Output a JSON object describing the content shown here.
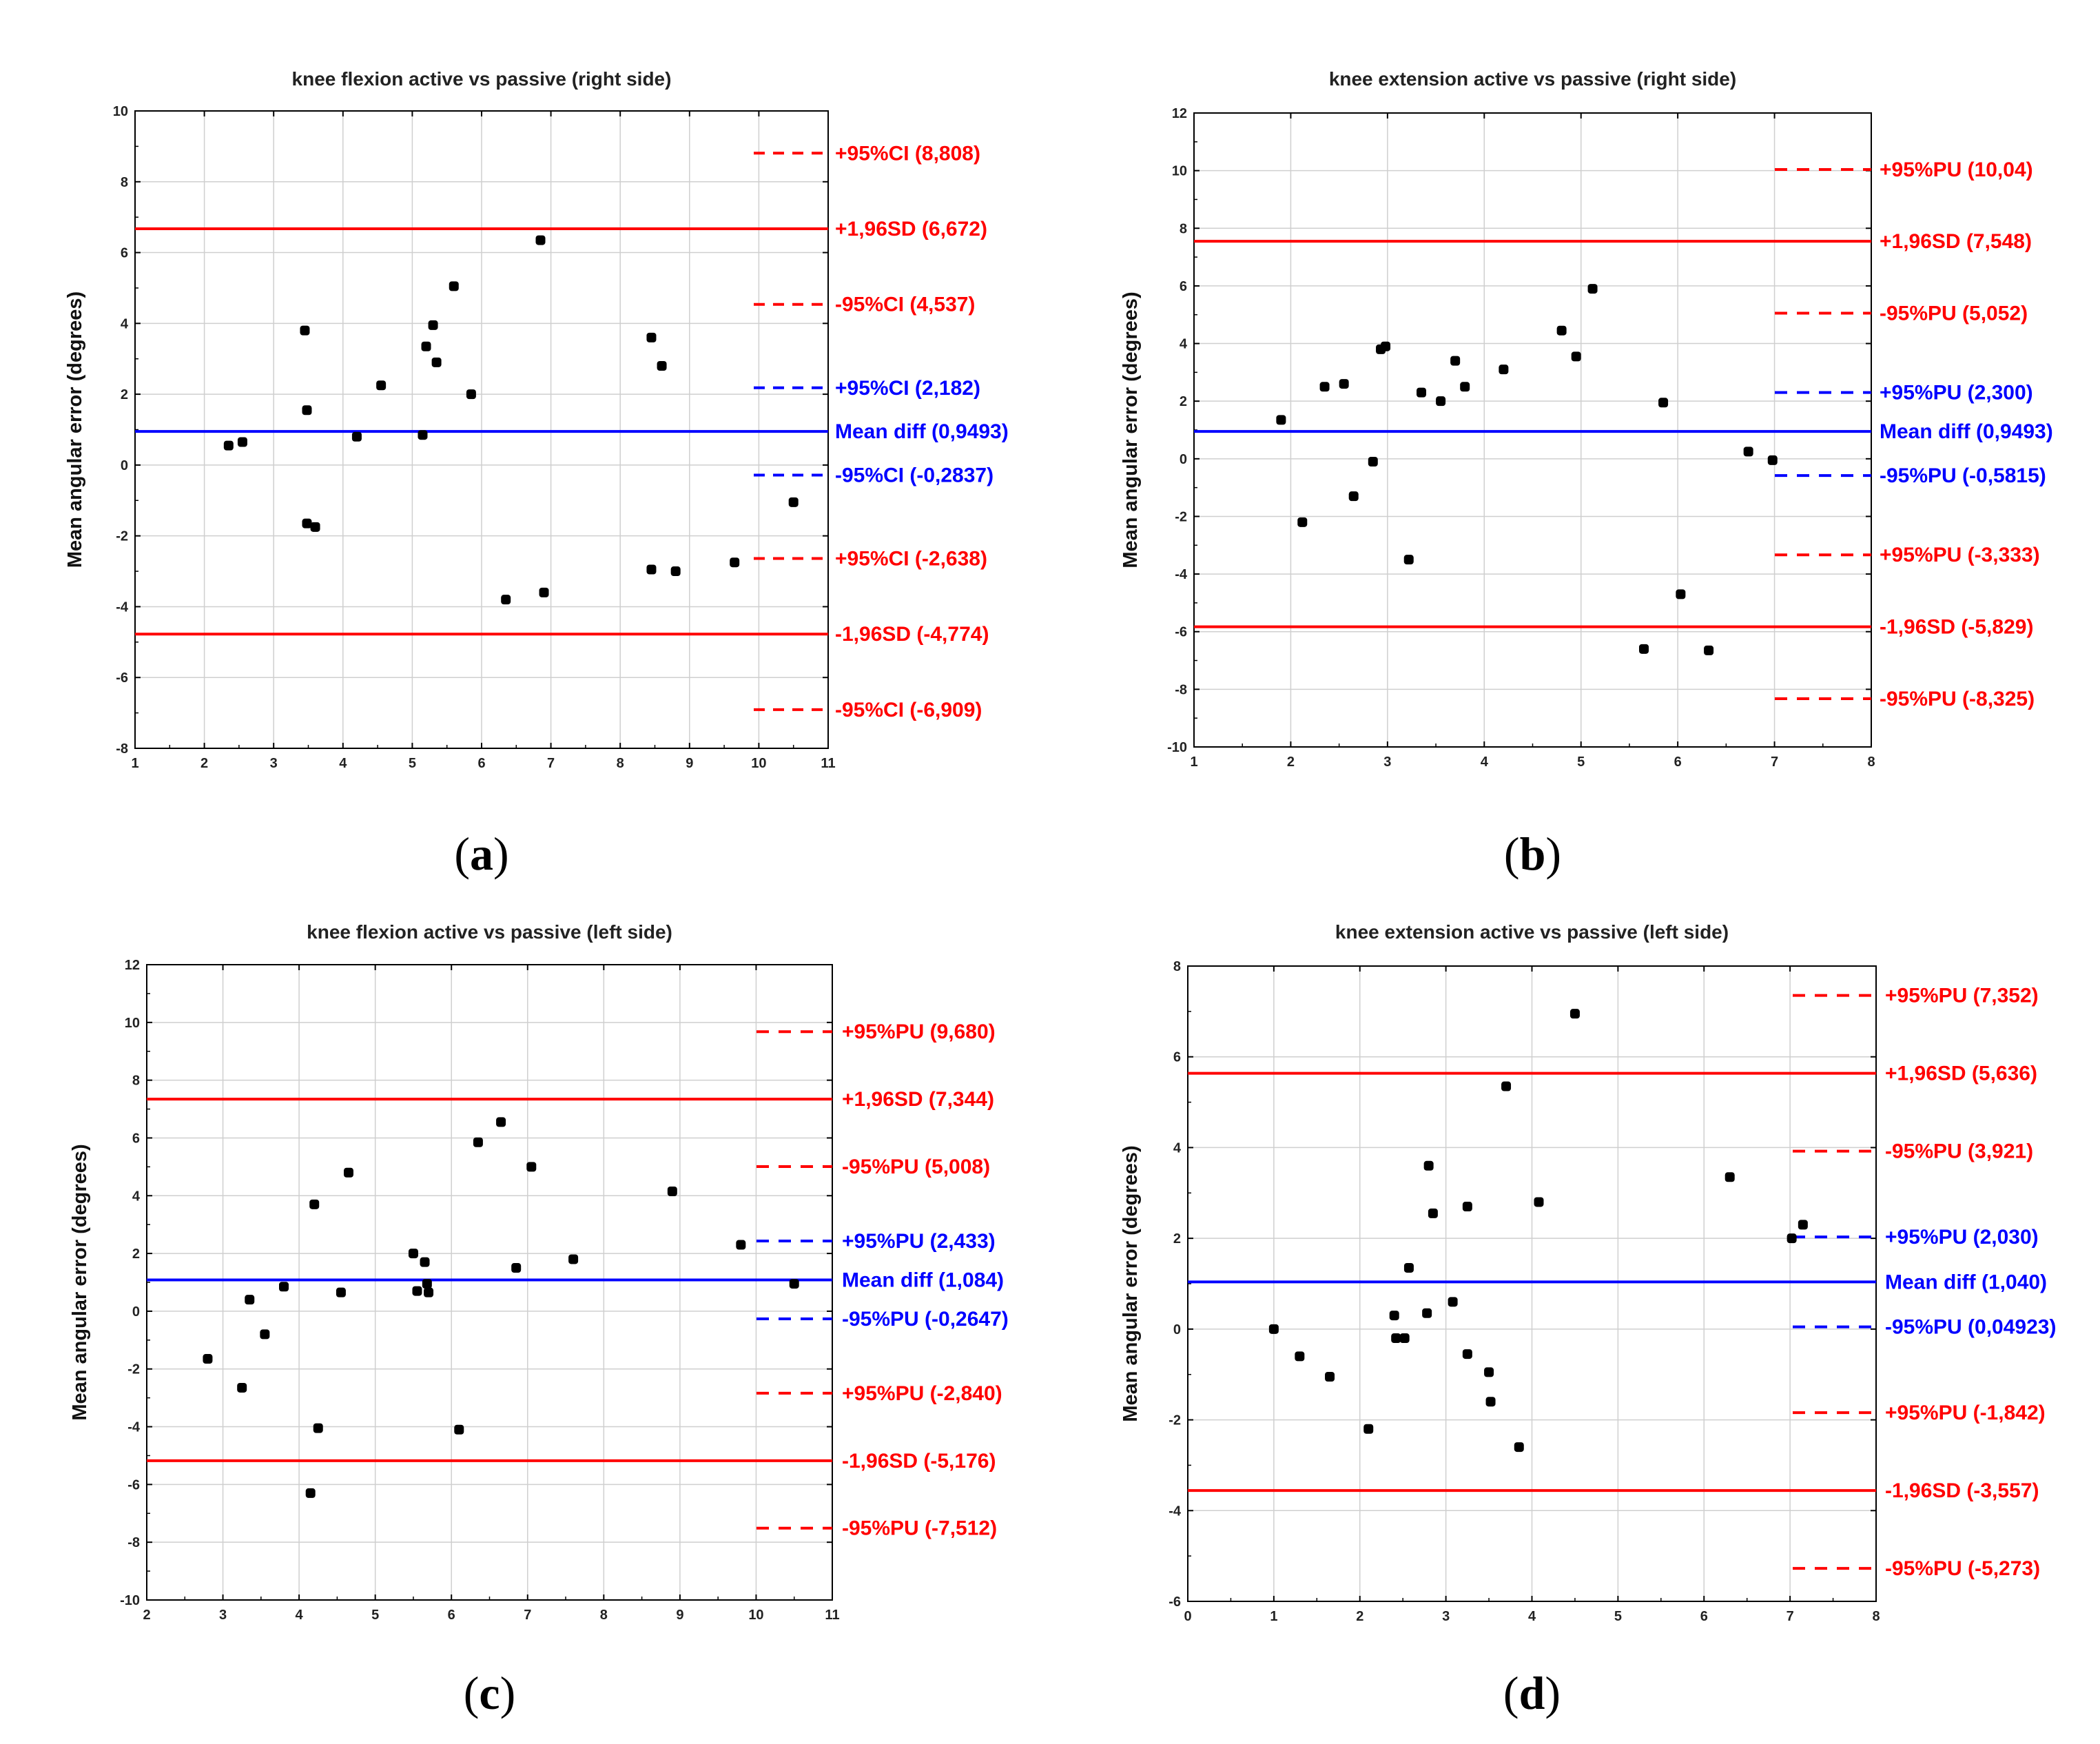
{
  "colors": {
    "red": "#ff0000",
    "blue": "#0000ff",
    "point": "#000000",
    "grid": "#cfcfcf",
    "axis": "#000000"
  },
  "chart_data": [
    {
      "type": "scatter",
      "title": "knee flexion active vs passive (right side)",
      "panel_label": "a",
      "xlabel": "",
      "ylabel": "Mean angular error (degrees)",
      "xlim": [
        1,
        11
      ],
      "ylim": [
        -8,
        10
      ],
      "xticks": [
        1,
        2,
        3,
        4,
        5,
        6,
        7,
        8,
        9,
        10,
        11
      ],
      "yticks": [
        -8,
        -6,
        -4,
        -2,
        0,
        2,
        4,
        6,
        8,
        10
      ],
      "points": [
        [
          2.35,
          0.55
        ],
        [
          2.55,
          0.65
        ],
        [
          3.45,
          3.8
        ],
        [
          3.48,
          1.55
        ],
        [
          3.48,
          -1.65
        ],
        [
          3.6,
          -1.75
        ],
        [
          4.2,
          0.8
        ],
        [
          4.55,
          2.25
        ],
        [
          5.15,
          0.85
        ],
        [
          5.2,
          3.35
        ],
        [
          5.3,
          3.95
        ],
        [
          5.35,
          2.9
        ],
        [
          5.6,
          5.05
        ],
        [
          5.85,
          2.0
        ],
        [
          6.35,
          -3.8
        ],
        [
          6.85,
          6.35
        ],
        [
          6.9,
          -3.6
        ],
        [
          8.45,
          -2.95
        ],
        [
          8.45,
          3.6
        ],
        [
          8.6,
          2.8
        ],
        [
          8.8,
          -3.0
        ],
        [
          9.65,
          -2.75
        ],
        [
          10.5,
          -1.05
        ]
      ],
      "lines": [
        {
          "label": "+95%CI (8,808)",
          "value": 8.808,
          "color": "red",
          "style": "dashed-short"
        },
        {
          "label": "+1,96SD (6,672)",
          "value": 6.672,
          "color": "red",
          "style": "solid"
        },
        {
          "label": "-95%CI (4,537)",
          "value": 4.537,
          "color": "red",
          "style": "dashed-short"
        },
        {
          "label": "+95%CI (2,182)",
          "value": 2.182,
          "color": "blue",
          "style": "dashed-short"
        },
        {
          "label": "Mean diff (0,9493)",
          "value": 0.9493,
          "color": "blue",
          "style": "solid"
        },
        {
          "label": "-95%CI (-0,2837)",
          "value": -0.2837,
          "color": "blue",
          "style": "dashed-short"
        },
        {
          "label": "+95%CI (-2,638)",
          "value": -2.638,
          "color": "red",
          "style": "dashed-short"
        },
        {
          "label": "-1,96SD (-4,774)",
          "value": -4.774,
          "color": "red",
          "style": "solid"
        },
        {
          "label": "-95%CI (-6,909)",
          "value": -6.909,
          "color": "red",
          "style": "dashed-short"
        }
      ]
    },
    {
      "type": "scatter",
      "title": "knee extension active vs passive (right side)",
      "panel_label": "b",
      "xlabel": "",
      "ylabel": "Mean angular error (degrees)",
      "xlim": [
        1,
        8
      ],
      "ylim": [
        -10,
        12
      ],
      "xticks": [
        1,
        2,
        3,
        4,
        5,
        6,
        7,
        8
      ],
      "yticks": [
        -10,
        -8,
        -6,
        -4,
        -2,
        0,
        2,
        4,
        6,
        8,
        10,
        12
      ],
      "points": [
        [
          1.9,
          1.35
        ],
        [
          2.12,
          -2.2
        ],
        [
          2.35,
          2.5
        ],
        [
          2.55,
          2.6
        ],
        [
          2.65,
          -1.3
        ],
        [
          2.85,
          -0.1
        ],
        [
          2.93,
          3.8
        ],
        [
          2.98,
          3.9
        ],
        [
          3.22,
          -3.5
        ],
        [
          3.35,
          2.3
        ],
        [
          3.55,
          2.0
        ],
        [
          3.7,
          3.4
        ],
        [
          3.8,
          2.5
        ],
        [
          4.2,
          3.1
        ],
        [
          4.8,
          4.45
        ],
        [
          4.95,
          3.55
        ],
        [
          5.12,
          5.9
        ],
        [
          5.65,
          -6.6
        ],
        [
          5.85,
          1.95
        ],
        [
          6.03,
          -4.7
        ],
        [
          6.32,
          -6.65
        ],
        [
          6.73,
          0.25
        ],
        [
          6.98,
          -0.05
        ]
      ],
      "lines": [
        {
          "label": "+95%PU (10,04)",
          "value": 10.04,
          "color": "red",
          "style": "dashed-long"
        },
        {
          "label": "+1,96SD (7,548)",
          "value": 7.548,
          "color": "red",
          "style": "solid"
        },
        {
          "label": "-95%PU (5,052)",
          "value": 5.052,
          "color": "red",
          "style": "dashed-long"
        },
        {
          "label": "+95%PU (2,300)",
          "value": 2.3,
          "color": "blue",
          "style": "dashed-long"
        },
        {
          "label": "Mean diff (0,9493)",
          "value": 0.9493,
          "color": "blue",
          "style": "solid"
        },
        {
          "label": "-95%PU (-0,5815)",
          "value": -0.5815,
          "color": "blue",
          "style": "dashed-long"
        },
        {
          "label": "+95%PU (-3,333)",
          "value": -3.333,
          "color": "red",
          "style": "dashed-long"
        },
        {
          "label": "-1,96SD (-5,829)",
          "value": -5.829,
          "color": "red",
          "style": "solid"
        },
        {
          "label": "-95%PU (-8,325)",
          "value": -8.325,
          "color": "red",
          "style": "dashed-long"
        }
      ]
    },
    {
      "type": "scatter",
      "title": "knee flexion active vs passive (left side)",
      "panel_label": "c",
      "xlabel": "",
      "ylabel": "Mean angular error (degrees)",
      "xlim": [
        2,
        11
      ],
      "ylim": [
        -10,
        12
      ],
      "xticks": [
        2,
        3,
        4,
        5,
        6,
        7,
        8,
        9,
        10,
        11
      ],
      "yticks": [
        -10,
        -8,
        -6,
        -4,
        -2,
        0,
        2,
        4,
        6,
        8,
        10,
        12
      ],
      "points": [
        [
          2.8,
          -1.65
        ],
        [
          3.25,
          -2.65
        ],
        [
          3.35,
          0.4
        ],
        [
          3.55,
          -0.8
        ],
        [
          3.8,
          0.85
        ],
        [
          4.15,
          -6.3
        ],
        [
          4.2,
          3.7
        ],
        [
          4.25,
          -4.05
        ],
        [
          4.55,
          0.65
        ],
        [
          4.65,
          4.8
        ],
        [
          5.5,
          2.0
        ],
        [
          5.55,
          0.7
        ],
        [
          5.65,
          1.7
        ],
        [
          5.68,
          0.95
        ],
        [
          5.7,
          0.65
        ],
        [
          6.1,
          -4.1
        ],
        [
          6.35,
          5.85
        ],
        [
          6.65,
          6.55
        ],
        [
          6.85,
          1.5
        ],
        [
          7.05,
          5.0
        ],
        [
          7.6,
          1.8
        ],
        [
          8.9,
          4.15
        ],
        [
          9.8,
          2.3
        ],
        [
          10.5,
          0.95
        ]
      ],
      "lines": [
        {
          "label": "+95%PU (9,680)",
          "value": 9.68,
          "color": "red",
          "style": "dashed-long"
        },
        {
          "label": "+1,96SD (7,344)",
          "value": 7.344,
          "color": "red",
          "style": "solid"
        },
        {
          "label": "-95%PU (5,008)",
          "value": 5.008,
          "color": "red",
          "style": "dashed-long"
        },
        {
          "label": "+95%PU (2,433)",
          "value": 2.433,
          "color": "blue",
          "style": "dashed-long"
        },
        {
          "label": "Mean diff (1,084)",
          "value": 1.084,
          "color": "blue",
          "style": "solid"
        },
        {
          "label": "-95%PU (-0,2647)",
          "value": -0.2647,
          "color": "blue",
          "style": "dashed-long"
        },
        {
          "label": "+95%PU (-2,840)",
          "value": -2.84,
          "color": "red",
          "style": "dashed-long"
        },
        {
          "label": "-1,96SD (-5,176)",
          "value": -5.176,
          "color": "red",
          "style": "solid"
        },
        {
          "label": "-95%PU (-7,512)",
          "value": -7.512,
          "color": "red",
          "style": "dashed-long"
        }
      ]
    },
    {
      "type": "scatter",
      "title": "knee extension active vs passive (left side)",
      "panel_label": "d",
      "xlabel": "",
      "ylabel": "Mean angular error (degrees)",
      "xlim": [
        0,
        8
      ],
      "ylim": [
        -6,
        8
      ],
      "xticks": [
        0,
        1,
        2,
        3,
        4,
        5,
        6,
        7,
        8
      ],
      "yticks": [
        -6,
        -4,
        -2,
        0,
        2,
        4,
        6,
        8
      ],
      "points": [
        [
          1.0,
          0.0
        ],
        [
          1.3,
          -0.6
        ],
        [
          1.65,
          -1.05
        ],
        [
          2.1,
          -2.2
        ],
        [
          2.4,
          0.3
        ],
        [
          2.42,
          -0.2
        ],
        [
          2.52,
          -0.2
        ],
        [
          2.57,
          1.35
        ],
        [
          2.78,
          0.35
        ],
        [
          2.8,
          3.6
        ],
        [
          2.85,
          2.55
        ],
        [
          3.08,
          0.6
        ],
        [
          3.25,
          -0.55
        ],
        [
          3.25,
          2.7
        ],
        [
          3.5,
          -0.95
        ],
        [
          3.52,
          -1.6
        ],
        [
          3.7,
          5.35
        ],
        [
          3.85,
          -2.6
        ],
        [
          4.08,
          2.8
        ],
        [
          4.5,
          6.95
        ],
        [
          6.3,
          3.35
        ],
        [
          7.02,
          2.0
        ],
        [
          7.15,
          2.3
        ]
      ],
      "lines": [
        {
          "label": "+95%PU (7,352)",
          "value": 7.352,
          "color": "red",
          "style": "dashed-long"
        },
        {
          "label": "+1,96SD (5,636)",
          "value": 5.636,
          "color": "red",
          "style": "solid"
        },
        {
          "label": "-95%PU (3,921)",
          "value": 3.921,
          "color": "red",
          "style": "dashed-long"
        },
        {
          "label": "+95%PU (2,030)",
          "value": 2.03,
          "color": "blue",
          "style": "dashed-long"
        },
        {
          "label": "Mean diff (1,040)",
          "value": 1.04,
          "color": "blue",
          "style": "solid"
        },
        {
          "label": "-95%PU (0,04923)",
          "value": 0.04923,
          "color": "blue",
          "style": "dashed-long"
        },
        {
          "label": "+95%PU (-1,842)",
          "value": -1.842,
          "color": "red",
          "style": "dashed-long"
        },
        {
          "label": "-1,96SD (-3,557)",
          "value": -3.557,
          "color": "red",
          "style": "solid"
        },
        {
          "label": "-95%PU (-5,273)",
          "value": -5.273,
          "color": "red",
          "style": "dashed-long"
        }
      ]
    }
  ]
}
